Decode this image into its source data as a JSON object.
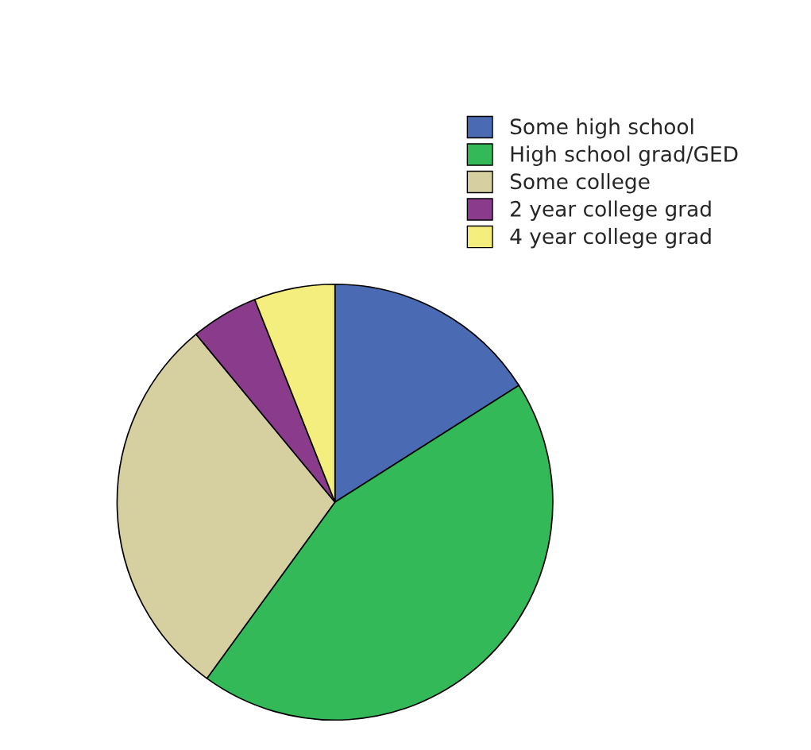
{
  "chart_data": {
    "type": "pie",
    "categories": [
      "Some high school",
      "High school grad/GED",
      "Some college",
      "2 year college grad",
      "4 year college grad"
    ],
    "values": [
      16,
      44,
      29,
      5,
      6
    ],
    "colors": [
      "#4a6bb3",
      "#33b957",
      "#d6d0a0",
      "#8a3b8c",
      "#f3ee7d"
    ],
    "legend": "top right"
  }
}
